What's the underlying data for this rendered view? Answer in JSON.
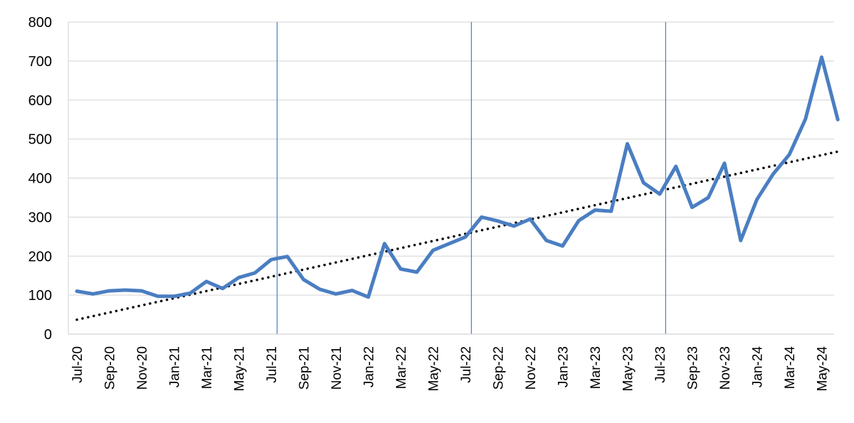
{
  "chart_data": {
    "type": "line",
    "title": "",
    "xlabel": "",
    "ylabel": "",
    "ylim": [
      0,
      800
    ],
    "yticks": [
      0,
      100,
      200,
      300,
      400,
      500,
      600,
      700,
      800
    ],
    "grid": "horizontal",
    "legend": "none",
    "categories": [
      "Jul-20",
      "Aug-20",
      "Sep-20",
      "Oct-20",
      "Nov-20",
      "Dec-20",
      "Jan-21",
      "Feb-21",
      "Mar-21",
      "Apr-21",
      "May-21",
      "Jun-21",
      "Jul-21",
      "Aug-21",
      "Sep-21",
      "Oct-21",
      "Nov-21",
      "Dec-21",
      "Jan-22",
      "Feb-22",
      "Mar-22",
      "Apr-22",
      "May-22",
      "Jun-22",
      "Jul-22",
      "Aug-22",
      "Sep-22",
      "Oct-22",
      "Nov-22",
      "Dec-22",
      "Jan-23",
      "Feb-23",
      "Mar-23",
      "Apr-23",
      "May-23",
      "Jun-23",
      "Jul-23",
      "Aug-23",
      "Sep-23",
      "Oct-23",
      "Nov-23",
      "Dec-23",
      "Jan-24",
      "Feb-24",
      "Mar-24",
      "Apr-24",
      "May-24",
      "Jun-24"
    ],
    "tick_labels": [
      "Jul-20",
      "Sep-20",
      "Nov-20",
      "Jan-21",
      "Mar-21",
      "May-21",
      "Jul-21",
      "Sep-21",
      "Nov-21",
      "Jan-22",
      "Mar-22",
      "May-22",
      "Jul-22",
      "Sep-22",
      "Nov-22",
      "Jan-23",
      "Mar-23",
      "May-23",
      "Jul-23",
      "Sep-23",
      "Nov-23",
      "Jan-24",
      "Mar-24",
      "May-24"
    ],
    "series": [
      {
        "values": [
          110,
          103,
          111,
          113,
          111,
          97,
          97,
          105,
          135,
          117,
          145,
          157,
          191,
          199,
          140,
          115,
          103,
          112,
          95,
          232,
          167,
          159,
          215,
          232,
          249,
          300,
          290,
          277,
          295,
          240,
          226,
          291,
          318,
          315,
          488,
          388,
          359,
          430,
          325,
          350,
          438,
          240,
          345,
          410,
          460,
          551,
          710,
          550
        ]
      }
    ],
    "trendline": {
      "type": "linear",
      "start": 37,
      "end": 468
    },
    "vertical_markers": [
      "Jul-21",
      "Jul-22",
      "Jul-23"
    ],
    "colors": {
      "series": "#4A7EC2",
      "trendline": "#000000",
      "grid": "#D3D3D3",
      "markers": "#4A7EC2"
    }
  }
}
